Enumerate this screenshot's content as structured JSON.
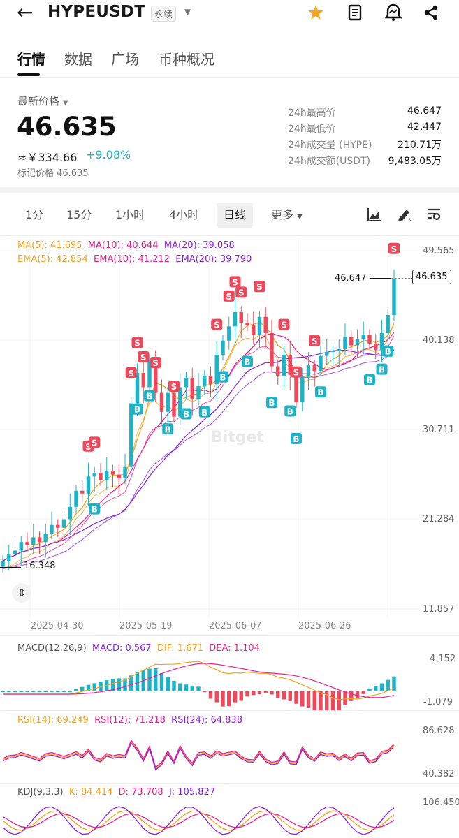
{
  "header": {
    "back_icon": "arrow-left-icon",
    "symbol": "HYPEUSDT",
    "contract_tag": "永续"
  },
  "tabs": [
    "行情",
    "数据",
    "广场",
    "币种概况"
  ],
  "price": {
    "label": "最新价格",
    "last": "46.635",
    "cny": "≈￥334.66",
    "change": "+9.08%",
    "mark": "标记价格 46.635"
  },
  "stats": [
    {
      "k": "24h最高价",
      "v": "46.647"
    },
    {
      "k": "24h最低价",
      "v": "42.447"
    },
    {
      "k": "24h成交量 (HYPE)",
      "v": "210.71万"
    },
    {
      "k": "24h成交额(USDT)",
      "v": "9,483.05万"
    }
  ],
  "timeframes": {
    "m1": "1分",
    "m15": "15分",
    "h1": "1小时",
    "h4": "4小时",
    "d1": "日线",
    "more": "更多"
  },
  "ma_line": {
    "ma5": "MA(5): 41.695",
    "ma10": "MA(10): 40.644",
    "ma20": "MA(20): 39.058"
  },
  "ema_line": {
    "ema5": "EMA(5): 42.854",
    "ema10": "EMA(10): 41.212",
    "ema20": "EMA(20): 39.790"
  },
  "watermark": "Bitget",
  "colors": {
    "up": "#1fb3c7",
    "down": "#f0485a",
    "accent": "#f5a623",
    "ma5": "#f2a21b",
    "ma10": "#e8208e",
    "ma20": "#8b21e0"
  },
  "chart_data": {
    "type": "candlestick",
    "title": "HYPEUSDT 日线",
    "price_axis": [
      "49.565",
      "40.138",
      "30.711",
      "21.284",
      "11.857"
    ],
    "ylim": [
      11.857,
      49.565
    ],
    "dates": [
      "2025-04-30",
      "2025-05-19",
      "2025-06-07",
      "2025-06-26"
    ],
    "high_label": "46.647",
    "low_label": "16.348",
    "last_label": "46.635",
    "closes": [
      16.9,
      17.6,
      18.0,
      18.9,
      18.6,
      19.4,
      18.9,
      19.8,
      20.7,
      20.4,
      21.3,
      22.6,
      24.3,
      24.0,
      25.8,
      26.2,
      25.4,
      26.4,
      26.0,
      25.6,
      26.8,
      33.5,
      36.7,
      35.2,
      38.1,
      34.6,
      32.6,
      34.6,
      32.1,
      35.2,
      36.2,
      33.9,
      35.3,
      36.4,
      35.5,
      38.6,
      40.1,
      41.6,
      43.1,
      42.0,
      41.7,
      40.7,
      42.6,
      40.9,
      37.4,
      36.4,
      38.6,
      36.5,
      33.6,
      36.2,
      37.5,
      36.9,
      38.5,
      38.9,
      39.0,
      39.2,
      40.5,
      39.6,
      40.3,
      40.7,
      39.8,
      39.1,
      40.9,
      42.8,
      46.6
    ]
  },
  "macd": {
    "label": "MACD(12,26,9)",
    "macd": "MACD: 0.567",
    "dif": "DIF: 1.671",
    "dea": "DEA: 1.104",
    "axis_top": "4.152",
    "axis_bottom": "-1.079"
  },
  "rsi": {
    "r14": "RSI(14): 69.249",
    "r12": "RSI(12): 71.218",
    "r24": "RSI(24): 64.838",
    "axis_top": "86.628",
    "axis_bottom": "40.382"
  },
  "kdj": {
    "label": "KDJ(9,3,3)",
    "k": "K: 84.414",
    "d": "D: 73.708",
    "j": "J: 105.827",
    "axis_top": "106.450"
  }
}
